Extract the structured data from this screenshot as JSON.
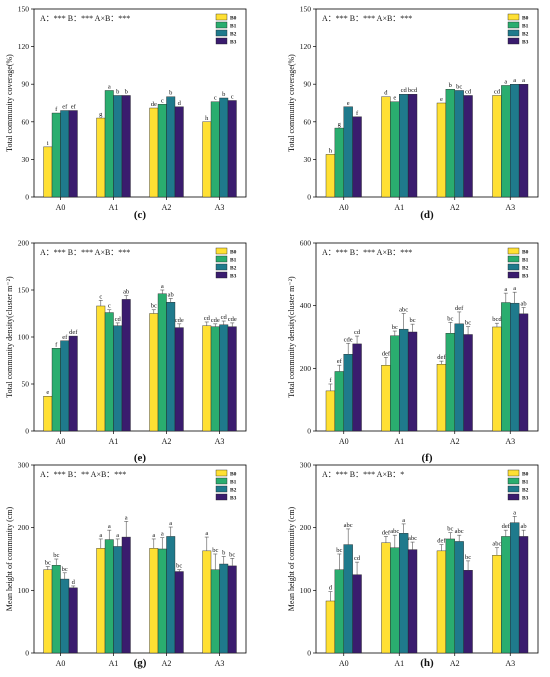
{
  "colors": {
    "B0": "#ffe033",
    "B1": "#2aad6f",
    "B2": "#1f7a8c",
    "B3": "#3a1c6e"
  },
  "panels": [
    {
      "id": "c",
      "caption": "(c)",
      "significance": "A：***  B：***  A×B：***",
      "chart_data": {
        "type": "bar",
        "ylabel": "Total community coverage(%)",
        "ylim": [
          0,
          150
        ],
        "yticks": [
          0,
          30,
          60,
          90,
          120,
          150
        ],
        "categories": [
          "A0",
          "A1",
          "A2",
          "A3"
        ],
        "legend_position": "top-right",
        "series": [
          {
            "name": "B0",
            "values": [
              40,
              63,
              71,
              60
            ],
            "errors": [
              0,
              0,
              0,
              0
            ],
            "letters": [
              "i",
              "g",
              "de",
              "h"
            ]
          },
          {
            "name": "B1",
            "values": [
              67,
              85,
              74,
              76
            ],
            "errors": [
              0,
              0,
              0,
              0
            ],
            "letters": [
              "f",
              "a",
              "c",
              "c"
            ]
          },
          {
            "name": "B2",
            "values": [
              69,
              81,
              80,
              79
            ],
            "errors": [
              0,
              0,
              0,
              0
            ],
            "letters": [
              "ef",
              "b",
              "b",
              "b"
            ]
          },
          {
            "name": "B3",
            "values": [
              69,
              81,
              72,
              77
            ],
            "errors": [
              0,
              0,
              0,
              0
            ],
            "letters": [
              "ef",
              "b",
              "d",
              "c"
            ]
          }
        ]
      }
    },
    {
      "id": "d",
      "caption": "(d)",
      "significance": "A：***  B：***  A×B：***",
      "chart_data": {
        "type": "bar",
        "ylabel": "Total community coverage(%)",
        "ylim": [
          0,
          150
        ],
        "yticks": [
          0,
          30,
          60,
          90,
          120,
          150
        ],
        "categories": [
          "A0",
          "A1",
          "A2",
          "A3"
        ],
        "legend_position": "top-right",
        "series": [
          {
            "name": "B0",
            "values": [
              34,
              80,
              75,
              81
            ],
            "errors": [
              0,
              0,
              0,
              0
            ],
            "letters": [
              "h",
              "d",
              "e",
              "cd"
            ]
          },
          {
            "name": "B1",
            "values": [
              55,
              76,
              86,
              89
            ],
            "errors": [
              0,
              0,
              0,
              0
            ],
            "letters": [
              "g",
              "e",
              "b",
              "a"
            ]
          },
          {
            "name": "B2",
            "values": [
              72,
              82,
              85,
              90
            ],
            "errors": [
              0,
              0,
              0,
              0
            ],
            "letters": [
              "e",
              "cd",
              "bc",
              "a"
            ]
          },
          {
            "name": "B3",
            "values": [
              64,
              82,
              81,
              90
            ],
            "errors": [
              0,
              0,
              0,
              0
            ],
            "letters": [
              "f",
              "bcd",
              "cd",
              "a"
            ]
          }
        ]
      }
    },
    {
      "id": "e",
      "caption": "(e)",
      "significance": "A：***  B：***  A×B：***",
      "chart_data": {
        "type": "bar",
        "ylabel": "Total community density(cluster m⁻²)",
        "ylim": [
          0,
          200
        ],
        "yticks": [
          0,
          50,
          100,
          150,
          200
        ],
        "categories": [
          "A0",
          "A1",
          "A2",
          "A3"
        ],
        "legend_position": "top-right",
        "series": [
          {
            "name": "B0",
            "values": [
              37,
              133,
              125,
              112
            ],
            "errors": [
              0,
              6,
              4,
              4
            ],
            "letters": [
              "e",
              "c",
              "bc",
              "cd"
            ]
          },
          {
            "name": "B1",
            "values": [
              88,
              126,
              146,
              111
            ],
            "errors": [
              0,
              3,
              4,
              3
            ],
            "letters": [
              "f",
              "c",
              "a",
              "cde"
            ]
          },
          {
            "name": "B2",
            "values": [
              96,
              112,
              137,
              113
            ],
            "errors": [
              0,
              3,
              4,
              4
            ],
            "letters": [
              "ef",
              "cd",
              "ab",
              "cd"
            ]
          },
          {
            "name": "B3",
            "values": [
              101,
              140,
              110,
              111
            ],
            "errors": [
              0,
              4,
              4,
              4
            ],
            "letters": [
              "def",
              "ab",
              "cde",
              "cde"
            ]
          }
        ]
      }
    },
    {
      "id": "f",
      "caption": "(f)",
      "significance": "A：***  B：***  A×B：***",
      "chart_data": {
        "type": "bar",
        "ylabel": "Total community density(cluster m⁻²)",
        "ylim": [
          0,
          600
        ],
        "yticks": [
          0,
          200,
          400,
          600
        ],
        "categories": [
          "A0",
          "A1",
          "A2",
          "A3"
        ],
        "legend_position": "top-right",
        "series": [
          {
            "name": "B0",
            "values": [
              128,
              210,
              213,
              332
            ],
            "errors": [
              22,
              25,
              10,
              12
            ],
            "letters": [
              "f",
              "def",
              "def",
              "bcd"
            ]
          },
          {
            "name": "B1",
            "values": [
              190,
              304,
              312,
              410
            ],
            "errors": [
              20,
              15,
              35,
              30
            ],
            "letters": [
              "ef",
              "bc",
              "bc",
              "a"
            ]
          },
          {
            "name": "B2",
            "values": [
              245,
              325,
              342,
              408
            ],
            "errors": [
              35,
              50,
              38,
              35
            ],
            "letters": [
              "cde",
              "abc",
              "def",
              "a"
            ]
          },
          {
            "name": "B3",
            "values": [
              278,
              316,
              308,
              374
            ],
            "errors": [
              25,
              25,
              25,
              20
            ],
            "letters": [
              "cd",
              "bc",
              "bc",
              "ab"
            ]
          }
        ]
      }
    },
    {
      "id": "g",
      "caption": "(g)",
      "significance": "A：***  B：**  A×B：***",
      "chart_data": {
        "type": "bar",
        "ylabel": "Mean height of community (cm)",
        "ylim": [
          0,
          300
        ],
        "yticks": [
          0,
          100,
          200,
          300
        ],
        "categories": [
          "A0",
          "A1",
          "A2",
          "A3"
        ],
        "legend_position": "top-right",
        "series": [
          {
            "name": "B0",
            "values": [
              133,
              167,
              167,
              163
            ],
            "errors": [
              5,
              15,
              15,
              22
            ],
            "letters": [
              "bc",
              "a",
              "a",
              "a"
            ]
          },
          {
            "name": "B1",
            "values": [
              140,
              181,
              166,
              133
            ],
            "errors": [
              10,
              15,
              18,
              25
            ],
            "letters": [
              "bc",
              "a",
              "a",
              "bc"
            ]
          },
          {
            "name": "B2",
            "values": [
              118,
              170,
              186,
              142
            ],
            "errors": [
              10,
              12,
              15,
              12
            ],
            "letters": [
              "bc",
              "a",
              "a",
              "b"
            ]
          },
          {
            "name": "B3",
            "values": [
              104,
              185,
              130,
              139
            ],
            "errors": [
              3,
              25,
              3,
              12
            ],
            "letters": [
              "d",
              "a",
              "bc",
              "bc"
            ]
          }
        ]
      }
    },
    {
      "id": "h",
      "caption": "(h)",
      "significance": "A：***  B：***  A×B：*",
      "chart_data": {
        "type": "bar",
        "ylabel": "Mean height of community (cm)",
        "ylim": [
          0,
          300
        ],
        "yticks": [
          0,
          100,
          200,
          300
        ],
        "categories": [
          "A0",
          "A1",
          "A2",
          "A3"
        ],
        "legend_position": "top-right",
        "series": [
          {
            "name": "B0",
            "values": [
              83,
              176,
              163,
              156
            ],
            "errors": [
              15,
              10,
              10,
              12
            ],
            "letters": [
              "d",
              "def",
              "def",
              "abc"
            ]
          },
          {
            "name": "B1",
            "values": [
              133,
              168,
              182,
              186
            ],
            "errors": [
              25,
              20,
              10,
              10
            ],
            "letters": [
              "bc",
              "abc",
              "bc",
              "def"
            ]
          },
          {
            "name": "B2",
            "values": [
              173,
              191,
              178,
              208
            ],
            "errors": [
              25,
              15,
              10,
              10
            ],
            "letters": [
              "abc",
              "a",
              "abc",
              "a"
            ]
          },
          {
            "name": "B3",
            "values": [
              125,
              165,
              132,
              186
            ],
            "errors": [
              20,
              12,
              15,
              10
            ],
            "letters": [
              "cd",
              "abc",
              "bc",
              "ab"
            ]
          }
        ]
      }
    }
  ]
}
